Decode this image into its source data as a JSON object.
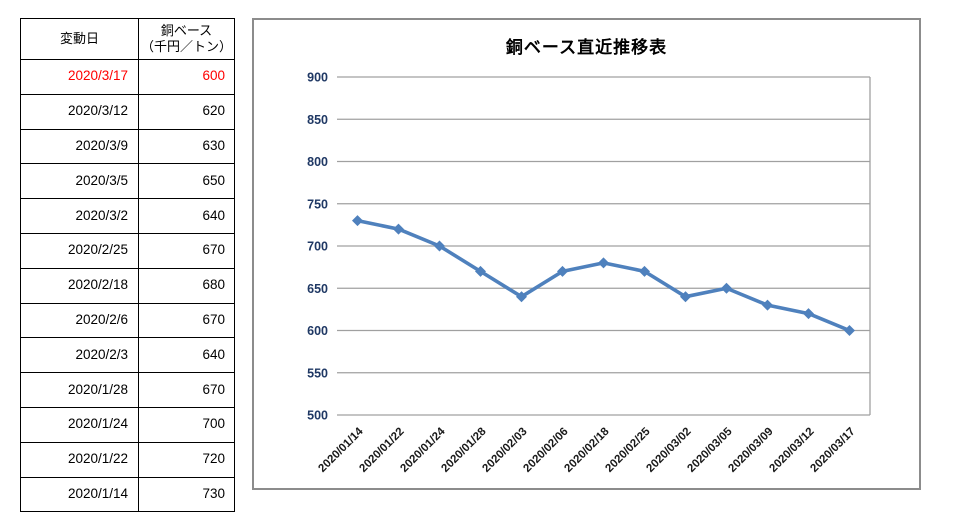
{
  "table": {
    "header_col1": "変動日",
    "header_col2_line1": "銅ベース",
    "header_col2_line2": "（千円／トン）",
    "highlight_color": "#FF0000",
    "rows": [
      {
        "date": "2020/3/17",
        "value": "600",
        "highlight": true
      },
      {
        "date": "2020/3/12",
        "value": "620",
        "highlight": false
      },
      {
        "date": "2020/3/9",
        "value": "630",
        "highlight": false
      },
      {
        "date": "2020/3/5",
        "value": "650",
        "highlight": false
      },
      {
        "date": "2020/3/2",
        "value": "640",
        "highlight": false
      },
      {
        "date": "2020/2/25",
        "value": "670",
        "highlight": false
      },
      {
        "date": "2020/2/18",
        "value": "680",
        "highlight": false
      },
      {
        "date": "2020/2/6",
        "value": "670",
        "highlight": false
      },
      {
        "date": "2020/2/3",
        "value": "640",
        "highlight": false
      },
      {
        "date": "2020/1/28",
        "value": "670",
        "highlight": false
      },
      {
        "date": "2020/1/24",
        "value": "700",
        "highlight": false
      },
      {
        "date": "2020/1/22",
        "value": "720",
        "highlight": false
      },
      {
        "date": "2020/1/14",
        "value": "730",
        "highlight": false
      }
    ]
  },
  "chart_data": {
    "type": "line",
    "title": "銅ベース直近推移表",
    "categories": [
      "2020/01/14",
      "2020/01/22",
      "2020/01/24",
      "2020/01/28",
      "2020/02/03",
      "2020/02/06",
      "2020/02/18",
      "2020/02/25",
      "2020/03/02",
      "2020/03/05",
      "2020/03/09",
      "2020/03/12",
      "2020/03/17"
    ],
    "values": [
      730,
      720,
      700,
      670,
      640,
      670,
      680,
      670,
      640,
      650,
      630,
      620,
      600
    ],
    "xlabel": "",
    "ylabel": "",
    "ylim": [
      500,
      900
    ],
    "ytick_step": 50,
    "grid": true,
    "legend": "none",
    "marker": "diamond",
    "line_color": "#4F81BD",
    "gridline_color": "#A0A0A0",
    "plot_border_color": "#A0A0A0",
    "ytick_color": "#1F3864",
    "xtick_color": "#1A1A1A",
    "chart_border_color": "#8C8C8C"
  }
}
